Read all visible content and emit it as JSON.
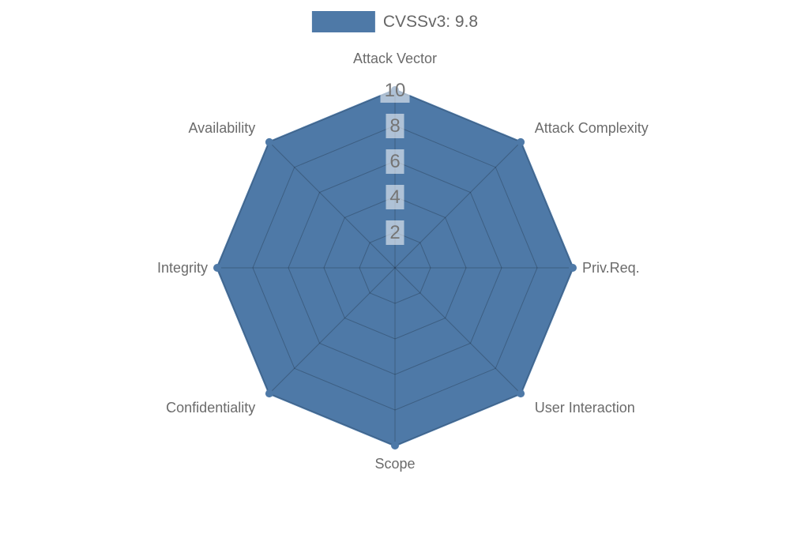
{
  "legend": {
    "label": "CVSSv3: 9.8",
    "swatch_color": "#4e79a7"
  },
  "chart_data": {
    "type": "radar",
    "title": "",
    "categories": [
      "Attack Vector",
      "Attack Complexity",
      "Priv.Req.",
      "User Interaction",
      "Scope",
      "Confidentiality",
      "Integrity",
      "Availability"
    ],
    "series": [
      {
        "name": "CVSSv3: 9.8",
        "values": [
          10,
          10,
          10,
          10,
          10,
          10,
          10,
          10
        ],
        "color": "#4e79a7",
        "fill_opacity": 1,
        "point_radius": 5
      }
    ],
    "ticks": [
      2,
      4,
      6,
      8,
      10
    ],
    "rmin": 0,
    "rmax": 10,
    "grid": true,
    "grid_shape": "polygon",
    "legend_position": "top",
    "colors": {
      "grid_line": "rgba(0,0,0,0.22)",
      "tick_text": "#757575",
      "tick_backdrop": "rgba(255,255,255,0.55)",
      "point_label_text": "#6b6b6b",
      "background": "#ffffff"
    }
  }
}
